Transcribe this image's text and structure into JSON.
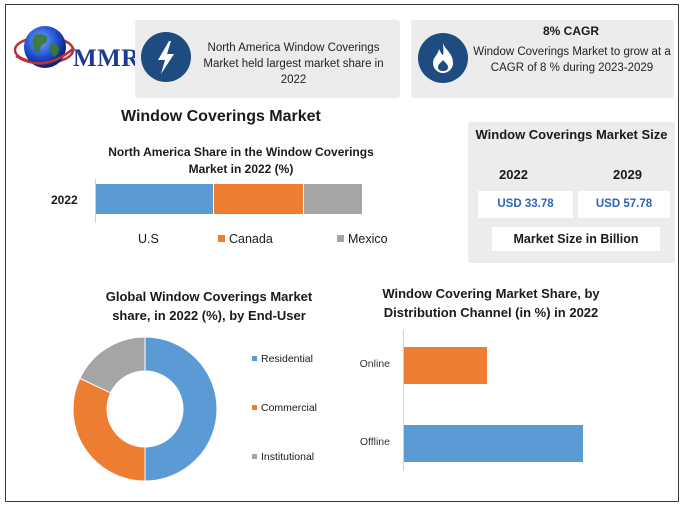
{
  "logo": {
    "text": "MMR"
  },
  "info1": {
    "icon": "lightning-icon",
    "text": "North America Window Coverings Market held largest market share in 2022"
  },
  "info2": {
    "icon": "flame-icon",
    "title": "8% CAGR",
    "text": "Window Coverings Market to grow at a CAGR of 8 % during 2023-2029"
  },
  "main_title": "Window Coverings Market",
  "market_size": {
    "title": "Window Coverings Market Size",
    "year1": "2022",
    "value1": "USD 33.78",
    "year2": "2029",
    "value2": "USD 57.78",
    "footer": "Market Size in Billion"
  },
  "colors": {
    "blue": "#5b9bd5",
    "orange": "#ed7d31",
    "gray": "#a5a5a5",
    "navy": "#1e4c80"
  },
  "chart_data": [
    {
      "type": "bar",
      "orientation": "horizontal",
      "stacked": true,
      "title": "North America Share in the Window Coverings Market in 2022 (%)",
      "categories": [
        "2022"
      ],
      "series": [
        {
          "name": "U.S",
          "values": [
            37
          ],
          "color": "#5b9bd5"
        },
        {
          "name": "Canada",
          "values": [
            28
          ],
          "color": "#ed7d31"
        },
        {
          "name": "Mexico",
          "values": [
            18
          ],
          "color": "#a5a5a5"
        }
      ],
      "legend": "bottom"
    },
    {
      "type": "pie",
      "donut": true,
      "title": "Global Window Coverings Market share, in 2022 (%), by End-User",
      "categories": [
        "Residential",
        "Commercial",
        "Institutional"
      ],
      "values": [
        50,
        32,
        18
      ],
      "colors": [
        "#5b9bd5",
        "#ed7d31",
        "#a5a5a5"
      ],
      "legend": "right"
    },
    {
      "type": "bar",
      "orientation": "horizontal",
      "title": "Window Covering Market Share, by Distribution Channel (in %) in 2022",
      "categories": [
        "Online",
        "Offline"
      ],
      "values": [
        30,
        65
      ],
      "colors": [
        "#ed7d31",
        "#5b9bd5"
      ],
      "xlim": [
        0,
        100
      ]
    }
  ]
}
